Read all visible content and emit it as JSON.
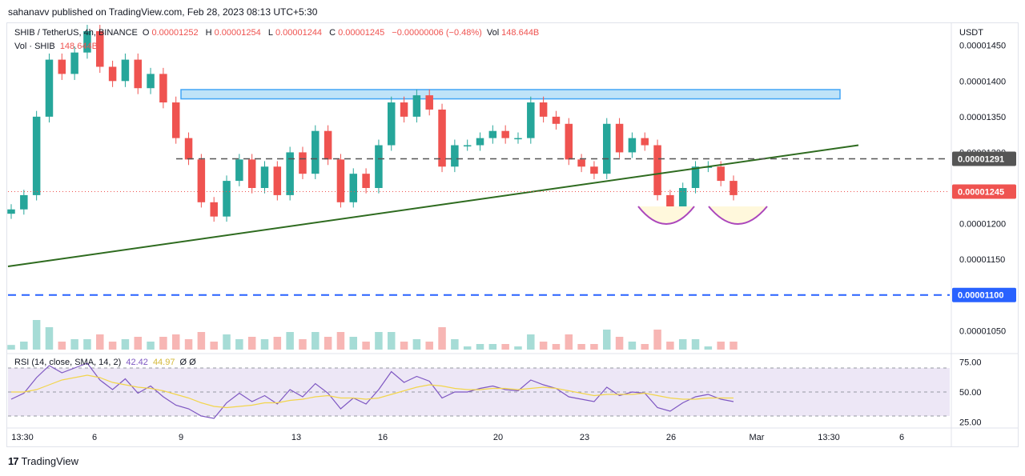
{
  "header": {
    "published": "sahanavv published on TradingView.com, Feb 28, 2023 08:13 UTC+5:30"
  },
  "legend": {
    "symbol": "SHIB / TetherUS, 4h, BINANCE",
    "o_label": "O",
    "o_value": "0.00001252",
    "h_label": "H",
    "h_value": "0.00001254",
    "l_label": "L",
    "l_value": "0.00001244",
    "c_label": "C",
    "c_value": "0.00001245",
    "change": "−0.00000006 (−0.48%)",
    "vol_label": "Vol",
    "vol_value": "148.644B",
    "vol_line_label": "Vol · SHIB",
    "vol_line_value": "148.644B",
    "rsi_label": "RSI (14, close, SMA, 14, 2)",
    "rsi_value": "42.42",
    "rsi_sma_value": "44.97",
    "rsi_extra": "Ø Ø"
  },
  "footer": {
    "brand": "TradingView",
    "logo_text": "17"
  },
  "colors": {
    "up": "#26a69a",
    "down": "#ef5350",
    "trendline": "#2e6b1f",
    "support": "#2962ff",
    "resistance_fill": "#bfe3f8",
    "resistance_stroke": "#42a5f5",
    "rsi": "#7e57c2",
    "rsi_sma": "#f2d54b",
    "rsi_band": "#ede7f6",
    "cup": "#ab47bc"
  },
  "chart_data": {
    "type": "candlestick",
    "symbol": "SHIB / TetherUS",
    "timeframe": "4h",
    "exchange": "BINANCE",
    "price_axis": {
      "label": "USDT",
      "ticks": [
        "0.00001450",
        "0.00001400",
        "0.00001350",
        "0.00001300",
        "0.00001200",
        "0.00001150",
        "0.00001050"
      ],
      "range": [
        1.02e-05,
        1.48e-05
      ]
    },
    "price_labels": [
      {
        "text": "0.00001291",
        "value": 1.291e-05,
        "style": "dashed-gray"
      },
      {
        "text": "0.00001245",
        "value": 1.245e-05,
        "style": "current"
      },
      {
        "text": "0.00001100",
        "value": 1.1e-05,
        "style": "support"
      }
    ],
    "time_axis": {
      "ticks": [
        "13:30",
        "6",
        "9",
        "13",
        "16",
        "20",
        "23",
        "26",
        "Mar",
        "13:30",
        "6"
      ]
    },
    "resistance_zone": {
      "low": 1.375e-05,
      "high": 1.388e-05,
      "from": "9",
      "to": "28"
    },
    "trendline": {
      "from_value": 1.14e-05,
      "to_value": 1.31e-05
    },
    "closes": [
      1.22e-05,
      1.24e-05,
      1.35e-05,
      1.43e-05,
      1.41e-05,
      1.44e-05,
      1.47e-05,
      1.42e-05,
      1.4e-05,
      1.43e-05,
      1.39e-05,
      1.41e-05,
      1.37e-05,
      1.32e-05,
      1.29e-05,
      1.23e-05,
      1.21e-05,
      1.26e-05,
      1.29e-05,
      1.25e-05,
      1.28e-05,
      1.24e-05,
      1.3e-05,
      1.27e-05,
      1.33e-05,
      1.29e-05,
      1.23e-05,
      1.27e-05,
      1.25e-05,
      1.31e-05,
      1.37e-05,
      1.35e-05,
      1.38e-05,
      1.36e-05,
      1.28e-05,
      1.31e-05,
      1.31e-05,
      1.32e-05,
      1.33e-05,
      1.32e-05,
      1.32e-05,
      1.37e-05,
      1.35e-05,
      1.34e-05,
      1.29e-05,
      1.28e-05,
      1.27e-05,
      1.34e-05,
      1.3e-05,
      1.32e-05,
      1.31e-05,
      1.24e-05,
      1.22e-05,
      1.25e-05,
      1.28e-05,
      1.28e-05,
      1.26e-05,
      1.24e-05
    ],
    "volume_unit": "B",
    "rsi": {
      "levels": [
        "75.00",
        "50.00",
        "25.00"
      ],
      "range": [
        20,
        80
      ],
      "band": [
        30,
        70
      ],
      "values": [
        44,
        49,
        62,
        72,
        66,
        70,
        74,
        60,
        52,
        61,
        49,
        55,
        46,
        39,
        36,
        30,
        28,
        41,
        49,
        42,
        47,
        40,
        52,
        46,
        57,
        49,
        36,
        45,
        40,
        52,
        67,
        58,
        63,
        59,
        45,
        50,
        50,
        53,
        55,
        52,
        51,
        60,
        56,
        53,
        46,
        44,
        42,
        54,
        47,
        50,
        49,
        37,
        34,
        41,
        46,
        48,
        44,
        42
      ],
      "sma_values": [
        50,
        50,
        52,
        56,
        60,
        62,
        64,
        62,
        58,
        56,
        54,
        53,
        51,
        48,
        45,
        41,
        38,
        37,
        38,
        39,
        41,
        41,
        43,
        44,
        46,
        47,
        45,
        45,
        44,
        45,
        48,
        51,
        54,
        56,
        55,
        53,
        52,
        52,
        53,
        53,
        52,
        53,
        54,
        53,
        51,
        49,
        47,
        48,
        48,
        48,
        49,
        47,
        45,
        44,
        44,
        45,
        45,
        45
      ]
    }
  }
}
